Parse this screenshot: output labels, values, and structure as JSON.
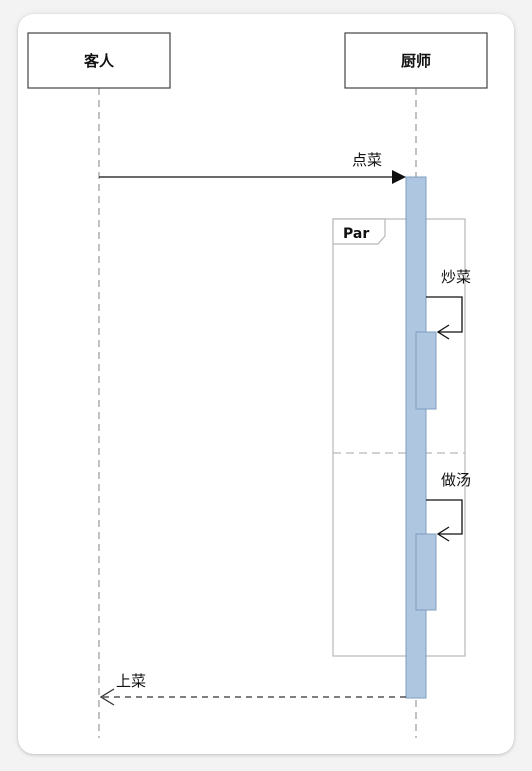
{
  "actors": {
    "guest": {
      "label": "客人"
    },
    "chef": {
      "label": "厨师"
    }
  },
  "messages": {
    "order": {
      "label": "点菜"
    },
    "stir_fry": {
      "label": "炒菜"
    },
    "soup": {
      "label": "做汤"
    },
    "serve": {
      "label": "上菜"
    }
  },
  "fragment": {
    "operator": "Par"
  },
  "colors": {
    "activation_fill": "#aec6e0",
    "activation_stroke": "#7f9fbf",
    "frame_stroke": "#b8b8b8",
    "lifeline": "#999999",
    "arrow": "#111111"
  }
}
